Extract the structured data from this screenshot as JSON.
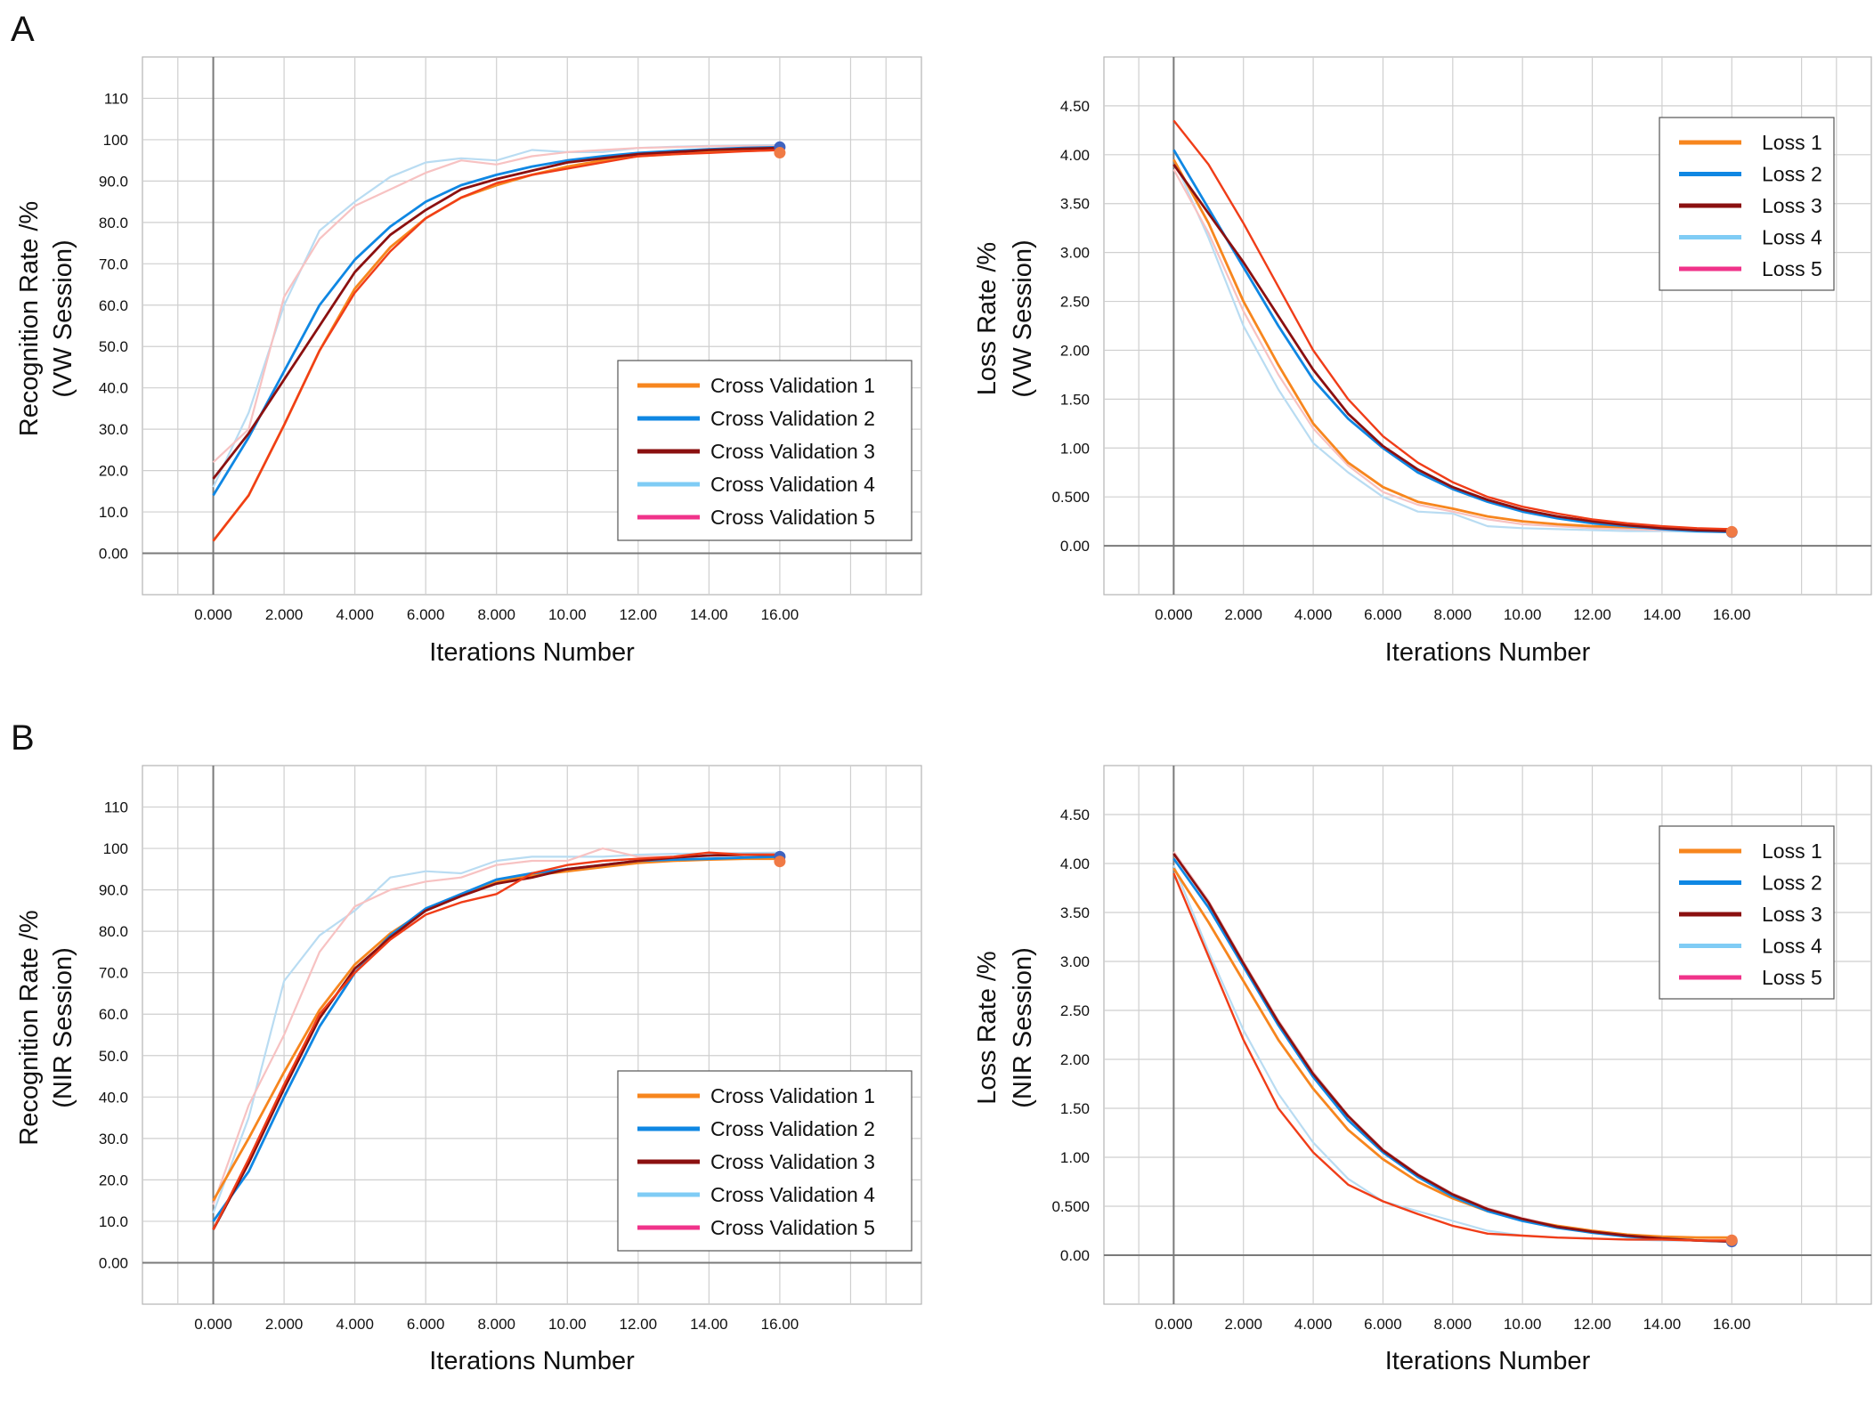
{
  "panel_labels": [
    "A",
    "B"
  ],
  "colors": {
    "series": [
      "#F7861E",
      "#0F87E3",
      "#8B1010",
      "#7FCCF5",
      "#F0338A"
    ],
    "highlight": "#F03D18",
    "grid": "#cfcfcf",
    "axis": "#7a7a7a",
    "frame": "#b5b5b5"
  },
  "chart_data": [
    {
      "id": "A-recognition",
      "type": "line",
      "panel": "A",
      "xlabel": "Iterations Number",
      "ylabel_line1": "Recognition Rate /%",
      "ylabel_line2": "(VW Session)",
      "xlim": [
        -2,
        20
      ],
      "ylim": [
        -10,
        120
      ],
      "xticks": [
        0,
        2,
        4,
        6,
        8,
        10,
        12,
        14,
        16
      ],
      "xtick_labels": [
        "0.000",
        "2.000",
        "4.000",
        "6.000",
        "8.000",
        "10.00",
        "12.00",
        "14.00",
        "16.00"
      ],
      "yticks": [
        0,
        10,
        20,
        30,
        40,
        50,
        60,
        70,
        80,
        90,
        100,
        110
      ],
      "ytick_labels": [
        "0.00",
        "10.0",
        "20.0",
        "30.0",
        "40.0",
        "50.0",
        "60.0",
        "70.0",
        "80.0",
        "90.0",
        "100",
        "110"
      ],
      "legend_position": "bottom-right",
      "x": [
        0,
        1,
        2,
        3,
        4,
        5,
        6,
        7,
        8,
        9,
        10,
        11,
        12,
        13,
        14,
        15,
        16
      ],
      "series": [
        {
          "name": "Cross Validation  1",
          "values": [
            3,
            14,
            31,
            49,
            64,
            74,
            81,
            86,
            89,
            91.5,
            93.5,
            95,
            96,
            96.5,
            97,
            97.3,
            97.5
          ]
        },
        {
          "name": "Cross Validation  2",
          "values": [
            14,
            28,
            44,
            60,
            71,
            79,
            85,
            89,
            91.5,
            93.5,
            95,
            96,
            96.8,
            97.3,
            97.7,
            98,
            98.2
          ]
        },
        {
          "name": "Cross Validation  3",
          "values": [
            18,
            29,
            42,
            55,
            68,
            77,
            83,
            88,
            90.5,
            92.5,
            94.5,
            95.5,
            96.5,
            97,
            97.5,
            97.8,
            98
          ]
        },
        {
          "name": "Cross Validation  4",
          "values": [
            16,
            34,
            60,
            78,
            85,
            91,
            94.5,
            95.5,
            95,
            97.5,
            97,
            97,
            98,
            98.3,
            98.5,
            98.6,
            98.7
          ]
        },
        {
          "name": "Cross Validation  5",
          "values": [
            22,
            30,
            62,
            76,
            84,
            88,
            92,
            95,
            94,
            96,
            97,
            97.5,
            98,
            98.2,
            98.4,
            98.5,
            98.5
          ]
        },
        {
          "name": "",
          "role": "highlight",
          "values": [
            3,
            14,
            31,
            49,
            63,
            73,
            81,
            86,
            89.5,
            91.5,
            93,
            94.5,
            96,
            96.5,
            96.8,
            97.2,
            97.5
          ]
        }
      ]
    },
    {
      "id": "A-loss",
      "type": "line",
      "panel": "A",
      "xlabel": "Iterations Number",
      "ylabel_line1": "Loss  Rate /%",
      "ylabel_line2": "(VW Session)",
      "xlim": [
        -2,
        20
      ],
      "ylim": [
        -0.5,
        5
      ],
      "xticks": [
        0,
        2,
        4,
        6,
        8,
        10,
        12,
        14,
        16
      ],
      "xtick_labels": [
        "0.000",
        "2.000",
        "4.000",
        "6.000",
        "8.000",
        "10.00",
        "12.00",
        "14.00",
        "16.00"
      ],
      "yticks": [
        0,
        0.5,
        1,
        1.5,
        2,
        2.5,
        3,
        3.5,
        4,
        4.5
      ],
      "ytick_labels": [
        "0.00",
        "0.500",
        "1.00",
        "1.50",
        "2.00",
        "2.50",
        "3.00",
        "3.50",
        "4.00",
        "4.50"
      ],
      "legend_position": "top-right",
      "x": [
        0,
        1,
        2,
        3,
        4,
        5,
        6,
        7,
        8,
        9,
        10,
        11,
        12,
        13,
        14,
        15,
        16
      ],
      "series": [
        {
          "name": "Loss  1",
          "values": [
            3.95,
            3.3,
            2.5,
            1.85,
            1.25,
            0.85,
            0.6,
            0.45,
            0.38,
            0.3,
            0.25,
            0.22,
            0.2,
            0.19,
            0.18,
            0.17,
            0.17
          ]
        },
        {
          "name": "Loss  2",
          "values": [
            4.05,
            3.45,
            2.85,
            2.25,
            1.7,
            1.3,
            1.0,
            0.75,
            0.58,
            0.45,
            0.35,
            0.28,
            0.23,
            0.2,
            0.17,
            0.15,
            0.14
          ]
        },
        {
          "name": "Loss  3",
          "values": [
            3.9,
            3.4,
            2.9,
            2.35,
            1.8,
            1.35,
            1.02,
            0.78,
            0.6,
            0.47,
            0.37,
            0.3,
            0.25,
            0.21,
            0.18,
            0.16,
            0.15
          ]
        },
        {
          "name": "Loss  4",
          "values": [
            3.95,
            3.15,
            2.25,
            1.6,
            1.05,
            0.75,
            0.5,
            0.35,
            0.33,
            0.2,
            0.18,
            0.17,
            0.16,
            0.15,
            0.15,
            0.14,
            0.14
          ]
        },
        {
          "name": "Loss  5",
          "values": [
            3.85,
            3.2,
            2.4,
            1.75,
            1.2,
            0.82,
            0.55,
            0.42,
            0.35,
            0.27,
            0.22,
            0.2,
            0.18,
            0.17,
            0.16,
            0.16,
            0.15
          ]
        },
        {
          "name": "",
          "role": "highlight",
          "values": [
            4.35,
            3.9,
            3.3,
            2.65,
            2.0,
            1.5,
            1.12,
            0.85,
            0.65,
            0.5,
            0.4,
            0.33,
            0.27,
            0.23,
            0.2,
            0.18,
            0.17
          ]
        }
      ]
    },
    {
      "id": "B-recognition",
      "type": "line",
      "panel": "B",
      "xlabel": "Iterations Number",
      "ylabel_line1": "Recognition Rate /%",
      "ylabel_line2": "(NIR Session)",
      "xlim": [
        -2,
        20
      ],
      "ylim": [
        -10,
        120
      ],
      "xticks": [
        0,
        2,
        4,
        6,
        8,
        10,
        12,
        14,
        16
      ],
      "xtick_labels": [
        "0.000",
        "2.000",
        "4.000",
        "6.000",
        "8.000",
        "10.00",
        "12.00",
        "14.00",
        "16.00"
      ],
      "yticks": [
        0,
        10,
        20,
        30,
        40,
        50,
        60,
        70,
        80,
        90,
        100,
        110
      ],
      "ytick_labels": [
        "0.00",
        "10.0",
        "20.0",
        "30.0",
        "40.0",
        "50.0",
        "60.0",
        "70.0",
        "80.0",
        "90.0",
        "100",
        "110"
      ],
      "legend_position": "bottom-right",
      "x": [
        0,
        1,
        2,
        3,
        4,
        5,
        6,
        7,
        8,
        9,
        10,
        11,
        12,
        13,
        14,
        15,
        16
      ],
      "series": [
        {
          "name": "Cross Validation  1",
          "values": [
            15,
            30,
            46,
            61,
            72,
            79.5,
            85,
            89,
            92,
            93.5,
            94.5,
            95.5,
            96.5,
            97,
            97.3,
            97.5,
            97.5
          ]
        },
        {
          "name": "Cross Validation  2",
          "values": [
            10,
            22,
            40,
            57,
            70,
            79,
            85.5,
            89,
            92.5,
            94,
            95,
            96,
            97,
            97.3,
            97.5,
            97.8,
            98
          ]
        },
        {
          "name": "Cross Validation  3",
          "values": [
            8,
            24,
            42,
            59,
            71,
            78.5,
            85,
            88.5,
            91.5,
            93,
            95,
            96,
            97,
            97.8,
            98.3,
            98.5,
            98.5
          ]
        },
        {
          "name": "Cross Validation  4",
          "values": [
            12,
            35,
            68,
            79,
            85,
            93,
            94.5,
            94,
            97,
            98,
            98,
            98,
            98.5,
            98.7,
            98.8,
            98.9,
            99
          ]
        },
        {
          "name": "Cross Validation  5",
          "values": [
            14,
            38,
            55,
            75,
            86,
            90,
            92,
            93,
            96,
            97,
            97,
            100,
            98,
            98,
            98.2,
            98.4,
            98.5
          ]
        },
        {
          "name": "",
          "role": "highlight",
          "values": [
            8,
            25,
            43,
            60,
            70,
            78,
            84,
            87,
            89,
            94,
            96,
            97,
            97.5,
            98,
            99,
            98.5,
            98.5
          ]
        }
      ]
    },
    {
      "id": "B-loss",
      "type": "line",
      "panel": "B",
      "xlabel": "Iterations Number",
      "ylabel_line1": "Loss  Rate /%",
      "ylabel_line2": "(NIR Session)",
      "xlim": [
        -2,
        20
      ],
      "ylim": [
        -0.5,
        5
      ],
      "xticks": [
        0,
        2,
        4,
        6,
        8,
        10,
        12,
        14,
        16
      ],
      "xtick_labels": [
        "0.000",
        "2.000",
        "4.000",
        "6.000",
        "8.000",
        "10.00",
        "12.00",
        "14.00",
        "16.00"
      ],
      "yticks": [
        0,
        0.5,
        1,
        1.5,
        2,
        2.5,
        3,
        3.5,
        4,
        4.5
      ],
      "ytick_labels": [
        "0.00",
        "0.500",
        "1.00",
        "1.50",
        "2.00",
        "2.50",
        "3.00",
        "3.50",
        "4.00",
        "4.50"
      ],
      "legend_position": "top-right",
      "x": [
        0,
        1,
        2,
        3,
        4,
        5,
        6,
        7,
        8,
        9,
        10,
        11,
        12,
        13,
        14,
        15,
        16
      ],
      "series": [
        {
          "name": "Loss  1",
          "values": [
            3.95,
            3.4,
            2.8,
            2.2,
            1.7,
            1.28,
            0.98,
            0.75,
            0.58,
            0.45,
            0.36,
            0.3,
            0.25,
            0.21,
            0.19,
            0.18,
            0.18
          ]
        },
        {
          "name": "Loss  2",
          "values": [
            4.05,
            3.55,
            2.95,
            2.35,
            1.82,
            1.38,
            1.05,
            0.8,
            0.6,
            0.45,
            0.35,
            0.28,
            0.23,
            0.19,
            0.17,
            0.15,
            0.14
          ]
        },
        {
          "name": "Loss  3",
          "values": [
            4.1,
            3.6,
            2.98,
            2.38,
            1.85,
            1.42,
            1.07,
            0.82,
            0.62,
            0.47,
            0.37,
            0.29,
            0.24,
            0.2,
            0.17,
            0.15,
            0.14
          ]
        },
        {
          "name": "Loss  4",
          "values": [
            3.98,
            3.1,
            2.3,
            1.65,
            1.15,
            0.78,
            0.55,
            0.45,
            0.35,
            0.25,
            0.2,
            0.18,
            0.17,
            0.16,
            0.15,
            0.15,
            0.15
          ]
        },
        {
          "name": "Loss  5",
          "values": [
            4.12,
            3.62,
            3.0,
            2.4,
            1.87,
            1.43,
            1.08,
            0.83,
            0.63,
            0.48,
            0.38,
            0.3,
            0.25,
            0.2,
            0.17,
            0.15,
            0.15
          ]
        },
        {
          "name": "",
          "role": "highlight",
          "values": [
            3.9,
            3.05,
            2.2,
            1.5,
            1.05,
            0.72,
            0.55,
            0.42,
            0.3,
            0.22,
            0.2,
            0.18,
            0.17,
            0.16,
            0.16,
            0.15,
            0.15
          ]
        }
      ]
    }
  ]
}
